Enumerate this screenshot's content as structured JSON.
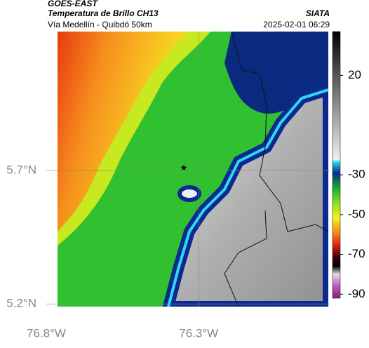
{
  "header": {
    "title": "GOES-EAST",
    "subtitle": "Temperatura de Brillo CH13",
    "source": "SIATA",
    "location": "Vía Medellín - Quibdó 50km",
    "datetime": "2025-02-01 06:29"
  },
  "map": {
    "xlim": [
      -76.8,
      -75.87
    ],
    "ylim": [
      5.19,
      6.22
    ],
    "xticks": [
      {
        "value": -76.8,
        "label": "76.8°W"
      },
      {
        "value": -76.3,
        "label": "76.3°W"
      }
    ],
    "yticks": [
      {
        "value": 5.7,
        "label": "5.7°N"
      },
      {
        "value": 5.2,
        "label": "5.2°N"
      }
    ],
    "grid": true
  },
  "colorbar": {
    "lim": [
      -92,
      42
    ],
    "ticks": [
      20,
      -30,
      -50,
      -70,
      -90
    ]
  }
}
